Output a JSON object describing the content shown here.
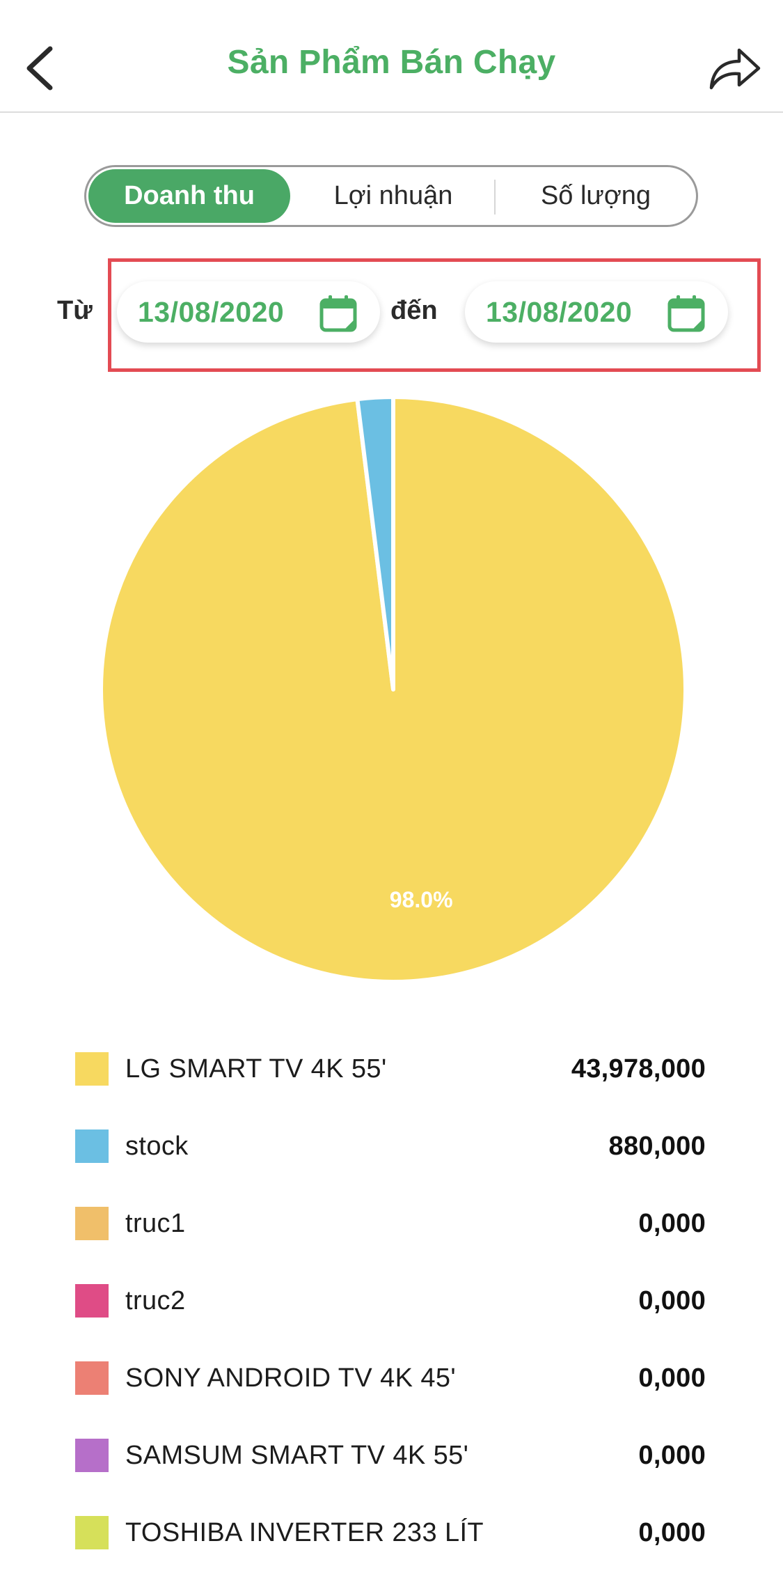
{
  "header": {
    "title": "Sản Phẩm Bán Chạy",
    "back_icon": "chevron-left-icon",
    "share_icon": "share-arrow-icon"
  },
  "tabs": [
    {
      "label": "Doanh thu",
      "active": true
    },
    {
      "label": "Lợi nhuận",
      "active": false
    },
    {
      "label": "Số lượng",
      "active": false
    }
  ],
  "date_range": {
    "from_label": "Từ",
    "from_date": "13/08/2020",
    "to_label": "đến",
    "to_date": "13/08/2020",
    "calendar_icon": "calendar-icon"
  },
  "colors": {
    "accent": "#4caf64",
    "highlight_border": "#e34b53"
  },
  "chart_data": {
    "type": "pie",
    "slices": [
      {
        "name": "LG SMART TV 4K 55'",
        "value": 43978000,
        "display": "43,978,000",
        "color": "#f7d960",
        "label": "98.0%"
      },
      {
        "name": "stock",
        "value": 880000,
        "display": "880,000",
        "color": "#6bbfe3",
        "label": ""
      },
      {
        "name": "truc1",
        "value": 0,
        "display": "0,000",
        "color": "#f0bf6a",
        "label": ""
      },
      {
        "name": "truc2",
        "value": 0,
        "display": "0,000",
        "color": "#df4c86",
        "label": ""
      },
      {
        "name": "SONY ANDROID TV 4K 45'",
        "value": 0,
        "display": "0,000",
        "color": "#ec8074",
        "label": ""
      },
      {
        "name": "SAMSUM SMART TV 4K 55'",
        "value": 0,
        "display": "0,000",
        "color": "#b66fc9",
        "label": ""
      },
      {
        "name": "TOSHIBA INVERTER 233 LÍT",
        "value": 0,
        "display": "0,000",
        "color": "#d6e05a",
        "label": ""
      }
    ]
  }
}
